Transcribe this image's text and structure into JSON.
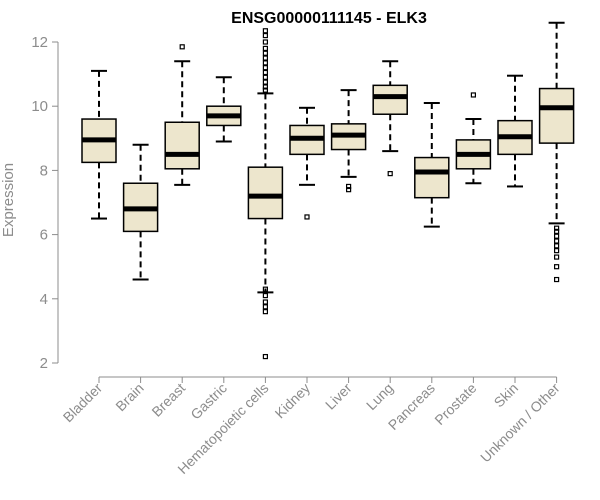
{
  "chart_data": {
    "type": "box",
    "title": "ENSG00000111145 - ELK3",
    "ylabel": "Expression",
    "xlabel": "",
    "ylim": [
      2,
      12.6
    ],
    "yticks": [
      2,
      4,
      6,
      8,
      10,
      12
    ],
    "categories": [
      "Bladder",
      "Brain",
      "Breast",
      "Gastric",
      "Hematopoietic cells",
      "Kidney",
      "Liver",
      "Lung",
      "Pancreas",
      "Prostate",
      "Skin",
      "Unknown / Other"
    ],
    "boxes": [
      {
        "label": "Bladder",
        "whisker_low": 6.5,
        "q1": 8.25,
        "median": 8.95,
        "q3": 9.6,
        "whisker_high": 11.1,
        "outliers": []
      },
      {
        "label": "Brain",
        "whisker_low": 4.6,
        "q1": 6.1,
        "median": 6.8,
        "q3": 7.6,
        "whisker_high": 8.8,
        "outliers": []
      },
      {
        "label": "Breast",
        "whisker_low": 7.55,
        "q1": 8.05,
        "median": 8.5,
        "q3": 9.5,
        "whisker_high": 11.4,
        "outliers": [
          11.85
        ]
      },
      {
        "label": "Gastric",
        "whisker_low": 8.9,
        "q1": 9.4,
        "median": 9.7,
        "q3": 10.0,
        "whisker_high": 10.9,
        "outliers": []
      },
      {
        "label": "Hematopoietic cells",
        "whisker_low": 4.2,
        "q1": 6.5,
        "median": 7.2,
        "q3": 8.1,
        "whisker_high": 10.4,
        "outliers": [
          2.2,
          3.6,
          3.75,
          3.9,
          4.1,
          4.3,
          10.5,
          10.6,
          10.75,
          10.9,
          11.05,
          11.2,
          11.35,
          11.5,
          11.65,
          11.8,
          12.0,
          12.2,
          12.35
        ]
      },
      {
        "label": "Kidney",
        "whisker_low": 7.55,
        "q1": 8.5,
        "median": 9.0,
        "q3": 9.4,
        "whisker_high": 9.95,
        "outliers": [
          6.55
        ]
      },
      {
        "label": "Liver",
        "whisker_low": 7.8,
        "q1": 8.65,
        "median": 9.1,
        "q3": 9.45,
        "whisker_high": 10.5,
        "outliers": [
          7.4,
          7.5
        ]
      },
      {
        "label": "Lung",
        "whisker_low": 8.6,
        "q1": 9.75,
        "median": 10.3,
        "q3": 10.65,
        "whisker_high": 11.4,
        "outliers": [
          7.9
        ]
      },
      {
        "label": "Pancreas",
        "whisker_low": 6.25,
        "q1": 7.15,
        "median": 7.95,
        "q3": 8.4,
        "whisker_high": 10.1,
        "outliers": []
      },
      {
        "label": "Prostate",
        "whisker_low": 7.6,
        "q1": 8.05,
        "median": 8.5,
        "q3": 8.95,
        "whisker_high": 9.6,
        "outliers": [
          10.35
        ]
      },
      {
        "label": "Skin",
        "whisker_low": 7.5,
        "q1": 8.5,
        "median": 9.05,
        "q3": 9.55,
        "whisker_high": 10.95,
        "outliers": []
      },
      {
        "label": "Unknown / Other",
        "whisker_low": 6.35,
        "q1": 8.85,
        "median": 9.95,
        "q3": 10.55,
        "whisker_high": 12.6,
        "outliers": [
          4.6,
          5.0,
          5.3,
          5.5,
          5.65,
          5.8,
          5.95,
          6.1,
          6.2
        ]
      }
    ],
    "colors": {
      "box_fill": "#ede6cd",
      "box_stroke": "#000000",
      "median": "#000000",
      "axis": "#8c8c8c"
    },
    "grid": false,
    "legend": "none"
  }
}
